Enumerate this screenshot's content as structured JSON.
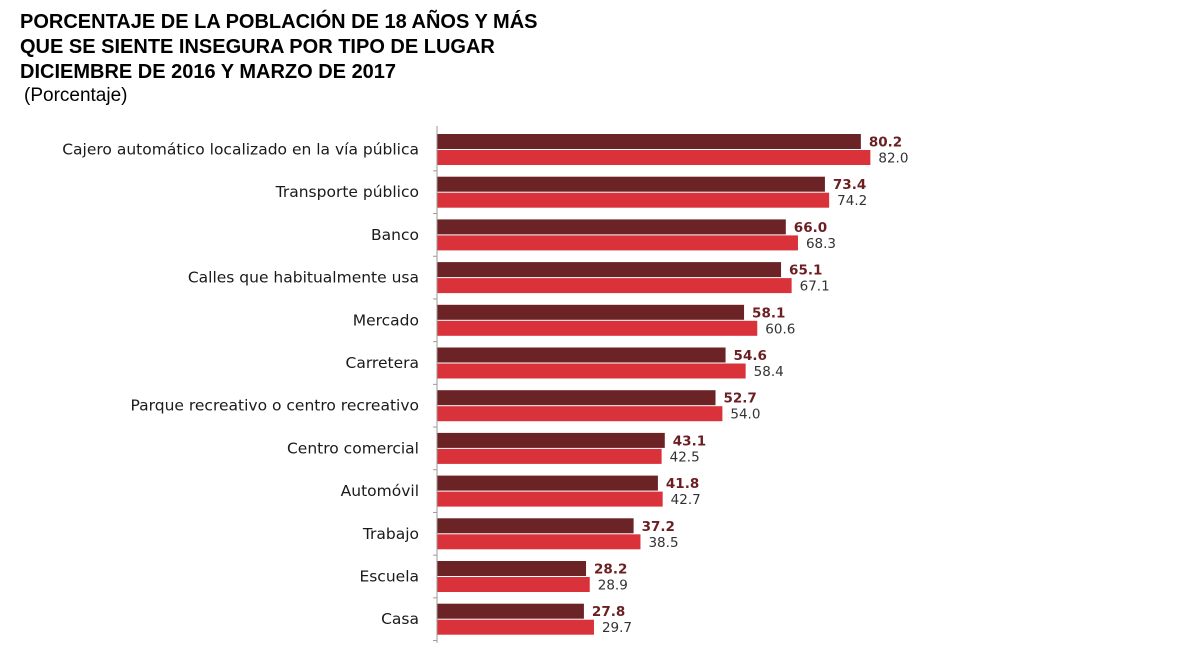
{
  "chart_data": {
    "type": "bar",
    "orientation": "horizontal",
    "title": [
      "PORCENTAJE DE LA POBLACIÓN DE 18 AÑOS Y MÁS",
      "QUE SE SIENTE INSEGURA POR TIPO DE LUGAR",
      "DICIEMBRE DE 2016 Y MARZO DE 2017"
    ],
    "subtitle": "(Porcentaje)",
    "xlim": [
      0,
      100
    ],
    "grid": false,
    "categories": [
      "Cajero automático localizado en la vía pública",
      "Transporte público",
      "Banco",
      "Calles que habitualmente usa",
      "Mercado",
      "Carretera",
      "Parque recreativo o centro recreativo",
      "Centro comercial",
      "Automóvil",
      "Trabajo",
      "Escuela",
      "Casa"
    ],
    "series": [
      {
        "name": "Diciembre 2016",
        "color": "#6b2326",
        "values": [
          80.2,
          73.4,
          66.0,
          65.1,
          58.1,
          54.6,
          52.7,
          43.1,
          41.8,
          37.2,
          28.2,
          27.8
        ]
      },
      {
        "name": "Marzo 2017",
        "color": "#d9323a",
        "values": [
          82.0,
          74.2,
          68.3,
          67.1,
          60.6,
          58.4,
          54.0,
          42.5,
          42.7,
          38.5,
          28.9,
          29.7
        ]
      }
    ]
  }
}
